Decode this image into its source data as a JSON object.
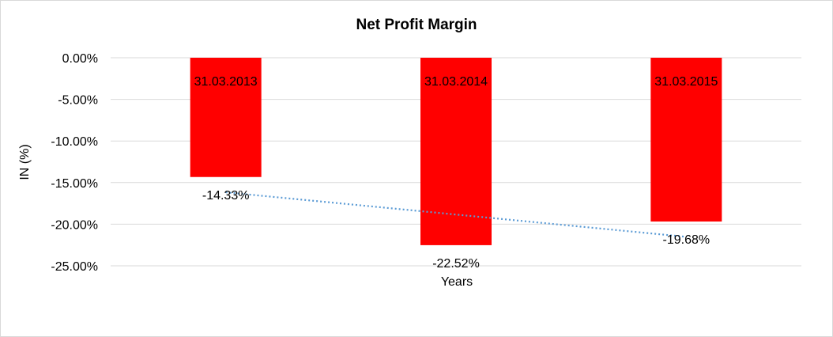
{
  "chart_data": {
    "type": "bar",
    "title": "Net Profit Margin",
    "xlabel": "Years",
    "ylabel": "IN (%)",
    "categories": [
      "31.03.2013",
      "31.03.2014",
      "31.03.2015"
    ],
    "values": [
      -14.33,
      -22.52,
      -19.68
    ],
    "data_labels": [
      "-14.33%",
      "-22.52%",
      "-19.68%"
    ],
    "ylim": [
      -25,
      0
    ],
    "yticks": [
      0,
      -5,
      -10,
      -15,
      -20,
      -25
    ],
    "ytick_labels": [
      "0.00%",
      "-5.00%",
      "-10.00%",
      "-15.00%",
      "-20.00%",
      "-25.00%"
    ],
    "grid": true,
    "legend": "none",
    "trendline": {
      "type": "linear",
      "style": "dotted"
    },
    "colors": {
      "bar": "#ff0000",
      "trendline": "#5b9bd5"
    }
  }
}
